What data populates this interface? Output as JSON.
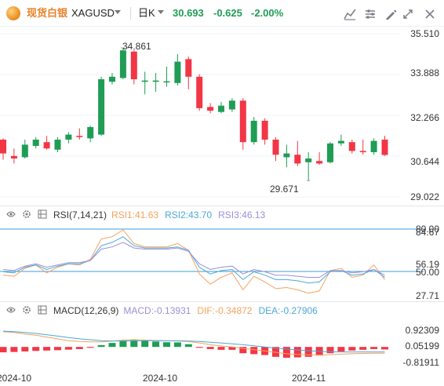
{
  "toolbar": {
    "symbol_name": "现货白银",
    "symbol_code": "XAGUSD",
    "timeframe": "日K",
    "price": "30.693",
    "change": "-0.625",
    "change_pct": "-2.00%",
    "tools": [
      "indicator-icon",
      "settings-sliders-icon",
      "draw-icon",
      "alert-icon",
      "compare-icon",
      "close-icon"
    ]
  },
  "colors": {
    "up": "#1f9d55",
    "down": "#f23645",
    "name_accent": "#e6832b",
    "rsi1": "#f5a25d",
    "rsi2": "#4aa8d8",
    "rsi3": "#9b8fd6",
    "macd_dif": "#f5a25d",
    "macd_dea": "#4aa8d8",
    "ref_line": "#3b9ed8"
  },
  "main": {
    "price_labels": [
      "35.510",
      "33.888",
      "32.266",
      "30.644",
      "29.022"
    ],
    "high_label": "34.861",
    "low_label": "29.671"
  },
  "rsi": {
    "title": "RSI(7,14,21)",
    "rsi1": "RSI1:41.63",
    "rsi2": "RSI2:43.70",
    "rsi3": "RSI3:46.13",
    "labels": [
      "80.00",
      "84.67",
      "56.19",
      "50.00",
      "27.71"
    ]
  },
  "macd": {
    "title": "MACD(12,26,9)",
    "macd": "MACD:-0.13931",
    "dif": "DIF:-0.34872",
    "dea": "DEA:-0.27906",
    "labels": [
      "0.92309",
      "0.05199",
      "-0.81911"
    ]
  },
  "dates": [
    "2024-10",
    "2024-10",
    "2024-11"
  ],
  "chart_data": {
    "type": "candlestick",
    "series": [
      {
        "name": "XAGUSD",
        "ohlc": [
          [
            31.3,
            31.35,
            30.5,
            30.75
          ],
          [
            30.65,
            30.95,
            30.35,
            30.55
          ],
          [
            30.6,
            31.3,
            30.55,
            31.1
          ],
          [
            31.05,
            31.4,
            30.95,
            31.3
          ],
          [
            31.2,
            31.45,
            30.9,
            30.95
          ],
          [
            30.9,
            31.4,
            30.8,
            31.3
          ],
          [
            31.3,
            31.6,
            31.15,
            31.5
          ],
          [
            31.45,
            31.75,
            31.3,
            31.4
          ],
          [
            31.35,
            31.85,
            31.2,
            31.8
          ],
          [
            31.5,
            33.8,
            31.45,
            33.7
          ],
          [
            33.6,
            33.95,
            33.5,
            33.8
          ],
          [
            33.75,
            34.95,
            33.7,
            34.85
          ],
          [
            34.8,
            34.86,
            33.5,
            33.7
          ],
          [
            33.6,
            34.0,
            33.1,
            33.65
          ],
          [
            33.6,
            33.95,
            33.2,
            33.65
          ],
          [
            33.6,
            34.2,
            33.4,
            33.62
          ],
          [
            33.55,
            34.7,
            33.45,
            34.4
          ],
          [
            34.5,
            34.6,
            33.3,
            33.8
          ],
          [
            33.8,
            33.9,
            32.45,
            32.55
          ],
          [
            32.6,
            32.75,
            32.35,
            32.45
          ],
          [
            32.4,
            32.8,
            32.35,
            32.65
          ],
          [
            32.5,
            32.95,
            32.4,
            32.85
          ],
          [
            32.85,
            32.95,
            30.9,
            31.2
          ],
          [
            31.2,
            32.2,
            31.1,
            32.05
          ],
          [
            32.05,
            32.15,
            31.1,
            31.3
          ],
          [
            31.3,
            31.4,
            30.45,
            30.7
          ],
          [
            30.6,
            31.1,
            30.2,
            30.75
          ],
          [
            30.7,
            31.25,
            30.25,
            30.35
          ],
          [
            30.4,
            30.8,
            29.67,
            30.55
          ],
          [
            30.45,
            30.8,
            30.3,
            30.35
          ],
          [
            30.4,
            31.2,
            30.35,
            31.15
          ],
          [
            31.15,
            31.5,
            31.05,
            31.25
          ],
          [
            31.2,
            31.3,
            30.75,
            30.85
          ],
          [
            30.85,
            31.3,
            30.7,
            30.8
          ],
          [
            30.8,
            31.35,
            30.7,
            31.25
          ],
          [
            31.3,
            31.45,
            30.65,
            30.69
          ]
        ]
      }
    ],
    "yrange": [
      29.022,
      35.51
    ],
    "rsi": {
      "range": [
        27.71,
        84.67
      ],
      "rsi1": [
        46,
        45,
        52,
        55,
        48,
        53,
        56,
        55,
        60,
        78,
        80,
        86,
        74,
        71,
        71,
        71,
        74,
        68,
        47,
        38,
        44,
        48,
        33,
        45,
        40,
        34,
        35,
        33,
        30,
        32,
        50,
        52,
        44,
        46,
        55,
        42
      ],
      "rsi2": [
        49,
        48,
        53,
        55,
        51,
        54,
        56,
        56,
        59,
        72,
        75,
        80,
        72,
        70,
        70,
        70,
        71,
        68,
        53,
        47,
        50,
        51,
        42,
        49,
        46,
        42,
        42,
        41,
        39,
        40,
        49,
        50,
        46,
        47,
        51,
        44
      ],
      "rsi3": [
        51,
        50,
        54,
        56,
        53,
        55,
        57,
        57,
        59,
        69,
        71,
        75,
        70,
        69,
        69,
        69,
        70,
        67,
        56,
        51,
        53,
        54,
        47,
        51,
        49,
        46,
        46,
        45,
        44,
        44,
        50,
        50,
        48,
        49,
        51,
        46
      ]
    },
    "macd": {
      "range": [
        -0.81911,
        0.92309
      ],
      "hist": [
        -0.3,
        -0.28,
        -0.25,
        -0.22,
        -0.2,
        -0.18,
        -0.15,
        -0.12,
        -0.05,
        0.1,
        0.22,
        0.35,
        0.38,
        0.34,
        0.3,
        0.26,
        0.25,
        0.15,
        -0.05,
        -0.12,
        -0.16,
        -0.16,
        -0.35,
        -0.4,
        -0.45,
        -0.55,
        -0.6,
        -0.58,
        -0.55,
        -0.48,
        -0.35,
        -0.25,
        -0.2,
        -0.16,
        -0.12,
        -0.14
      ],
      "dif": [
        0.85,
        0.8,
        0.72,
        0.65,
        0.55,
        0.45,
        0.35,
        0.3,
        0.28,
        0.28,
        0.32,
        0.38,
        0.4,
        0.38,
        0.36,
        0.34,
        0.33,
        0.3,
        0.22,
        0.12,
        0.05,
        0.0,
        -0.08,
        -0.15,
        -0.22,
        -0.3,
        -0.38,
        -0.42,
        -0.44,
        -0.45,
        -0.43,
        -0.4,
        -0.38,
        -0.36,
        -0.35,
        -0.35
      ],
      "dea": [
        0.88,
        0.85,
        0.8,
        0.75,
        0.68,
        0.6,
        0.52,
        0.45,
        0.4,
        0.35,
        0.33,
        0.33,
        0.34,
        0.35,
        0.35,
        0.34,
        0.34,
        0.33,
        0.3,
        0.26,
        0.22,
        0.17,
        0.12,
        0.06,
        0.0,
        -0.06,
        -0.12,
        -0.17,
        -0.21,
        -0.25,
        -0.27,
        -0.28,
        -0.28,
        -0.28,
        -0.28,
        -0.28
      ]
    }
  }
}
